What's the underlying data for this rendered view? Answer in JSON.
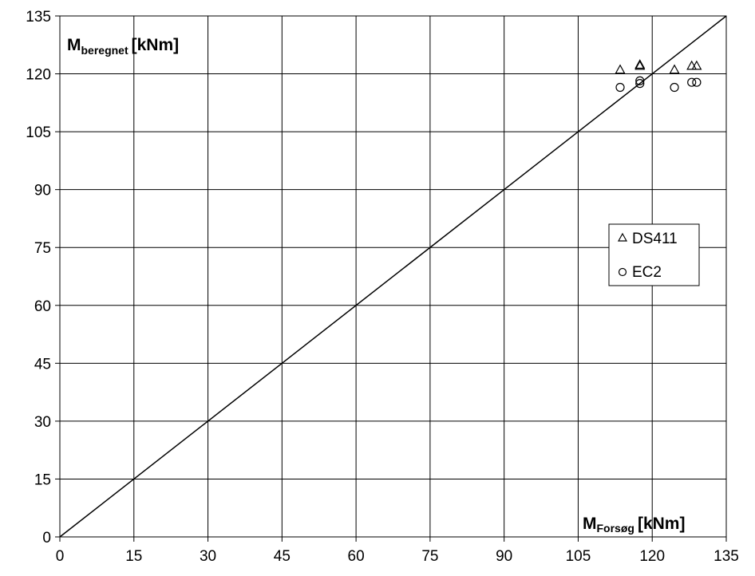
{
  "chart_data": {
    "type": "scatter",
    "xlim": [
      0,
      135
    ],
    "ylim": [
      0,
      135
    ],
    "x_ticks": [
      0,
      15,
      30,
      45,
      60,
      75,
      90,
      105,
      120,
      135
    ],
    "y_ticks": [
      0,
      15,
      30,
      45,
      60,
      75,
      90,
      105,
      120,
      135
    ],
    "grid": true,
    "ylabel_main": "M",
    "ylabel_sub": "beregnet",
    "ylabel_unit": "[kNm]",
    "xlabel_main": "M",
    "xlabel_sub": "Forsøg",
    "xlabel_unit": "[kNm]",
    "reference_line": {
      "x": [
        0,
        135
      ],
      "y": [
        0,
        135
      ]
    },
    "legend_position": "right-middle",
    "series": [
      {
        "name": "DS411",
        "marker": "triangle",
        "points": [
          {
            "x": 113.5,
            "y": 121.0
          },
          {
            "x": 117.5,
            "y": 122.0
          },
          {
            "x": 117.5,
            "y": 122.3
          },
          {
            "x": 124.5,
            "y": 121.0
          },
          {
            "x": 128.0,
            "y": 122.0
          },
          {
            "x": 129.0,
            "y": 122.0
          }
        ]
      },
      {
        "name": "EC2",
        "marker": "circle",
        "points": [
          {
            "x": 113.5,
            "y": 116.5
          },
          {
            "x": 117.5,
            "y": 117.5
          },
          {
            "x": 117.5,
            "y": 118.2
          },
          {
            "x": 124.5,
            "y": 116.5
          },
          {
            "x": 128.0,
            "y": 117.8
          },
          {
            "x": 129.0,
            "y": 117.8
          }
        ]
      }
    ]
  }
}
